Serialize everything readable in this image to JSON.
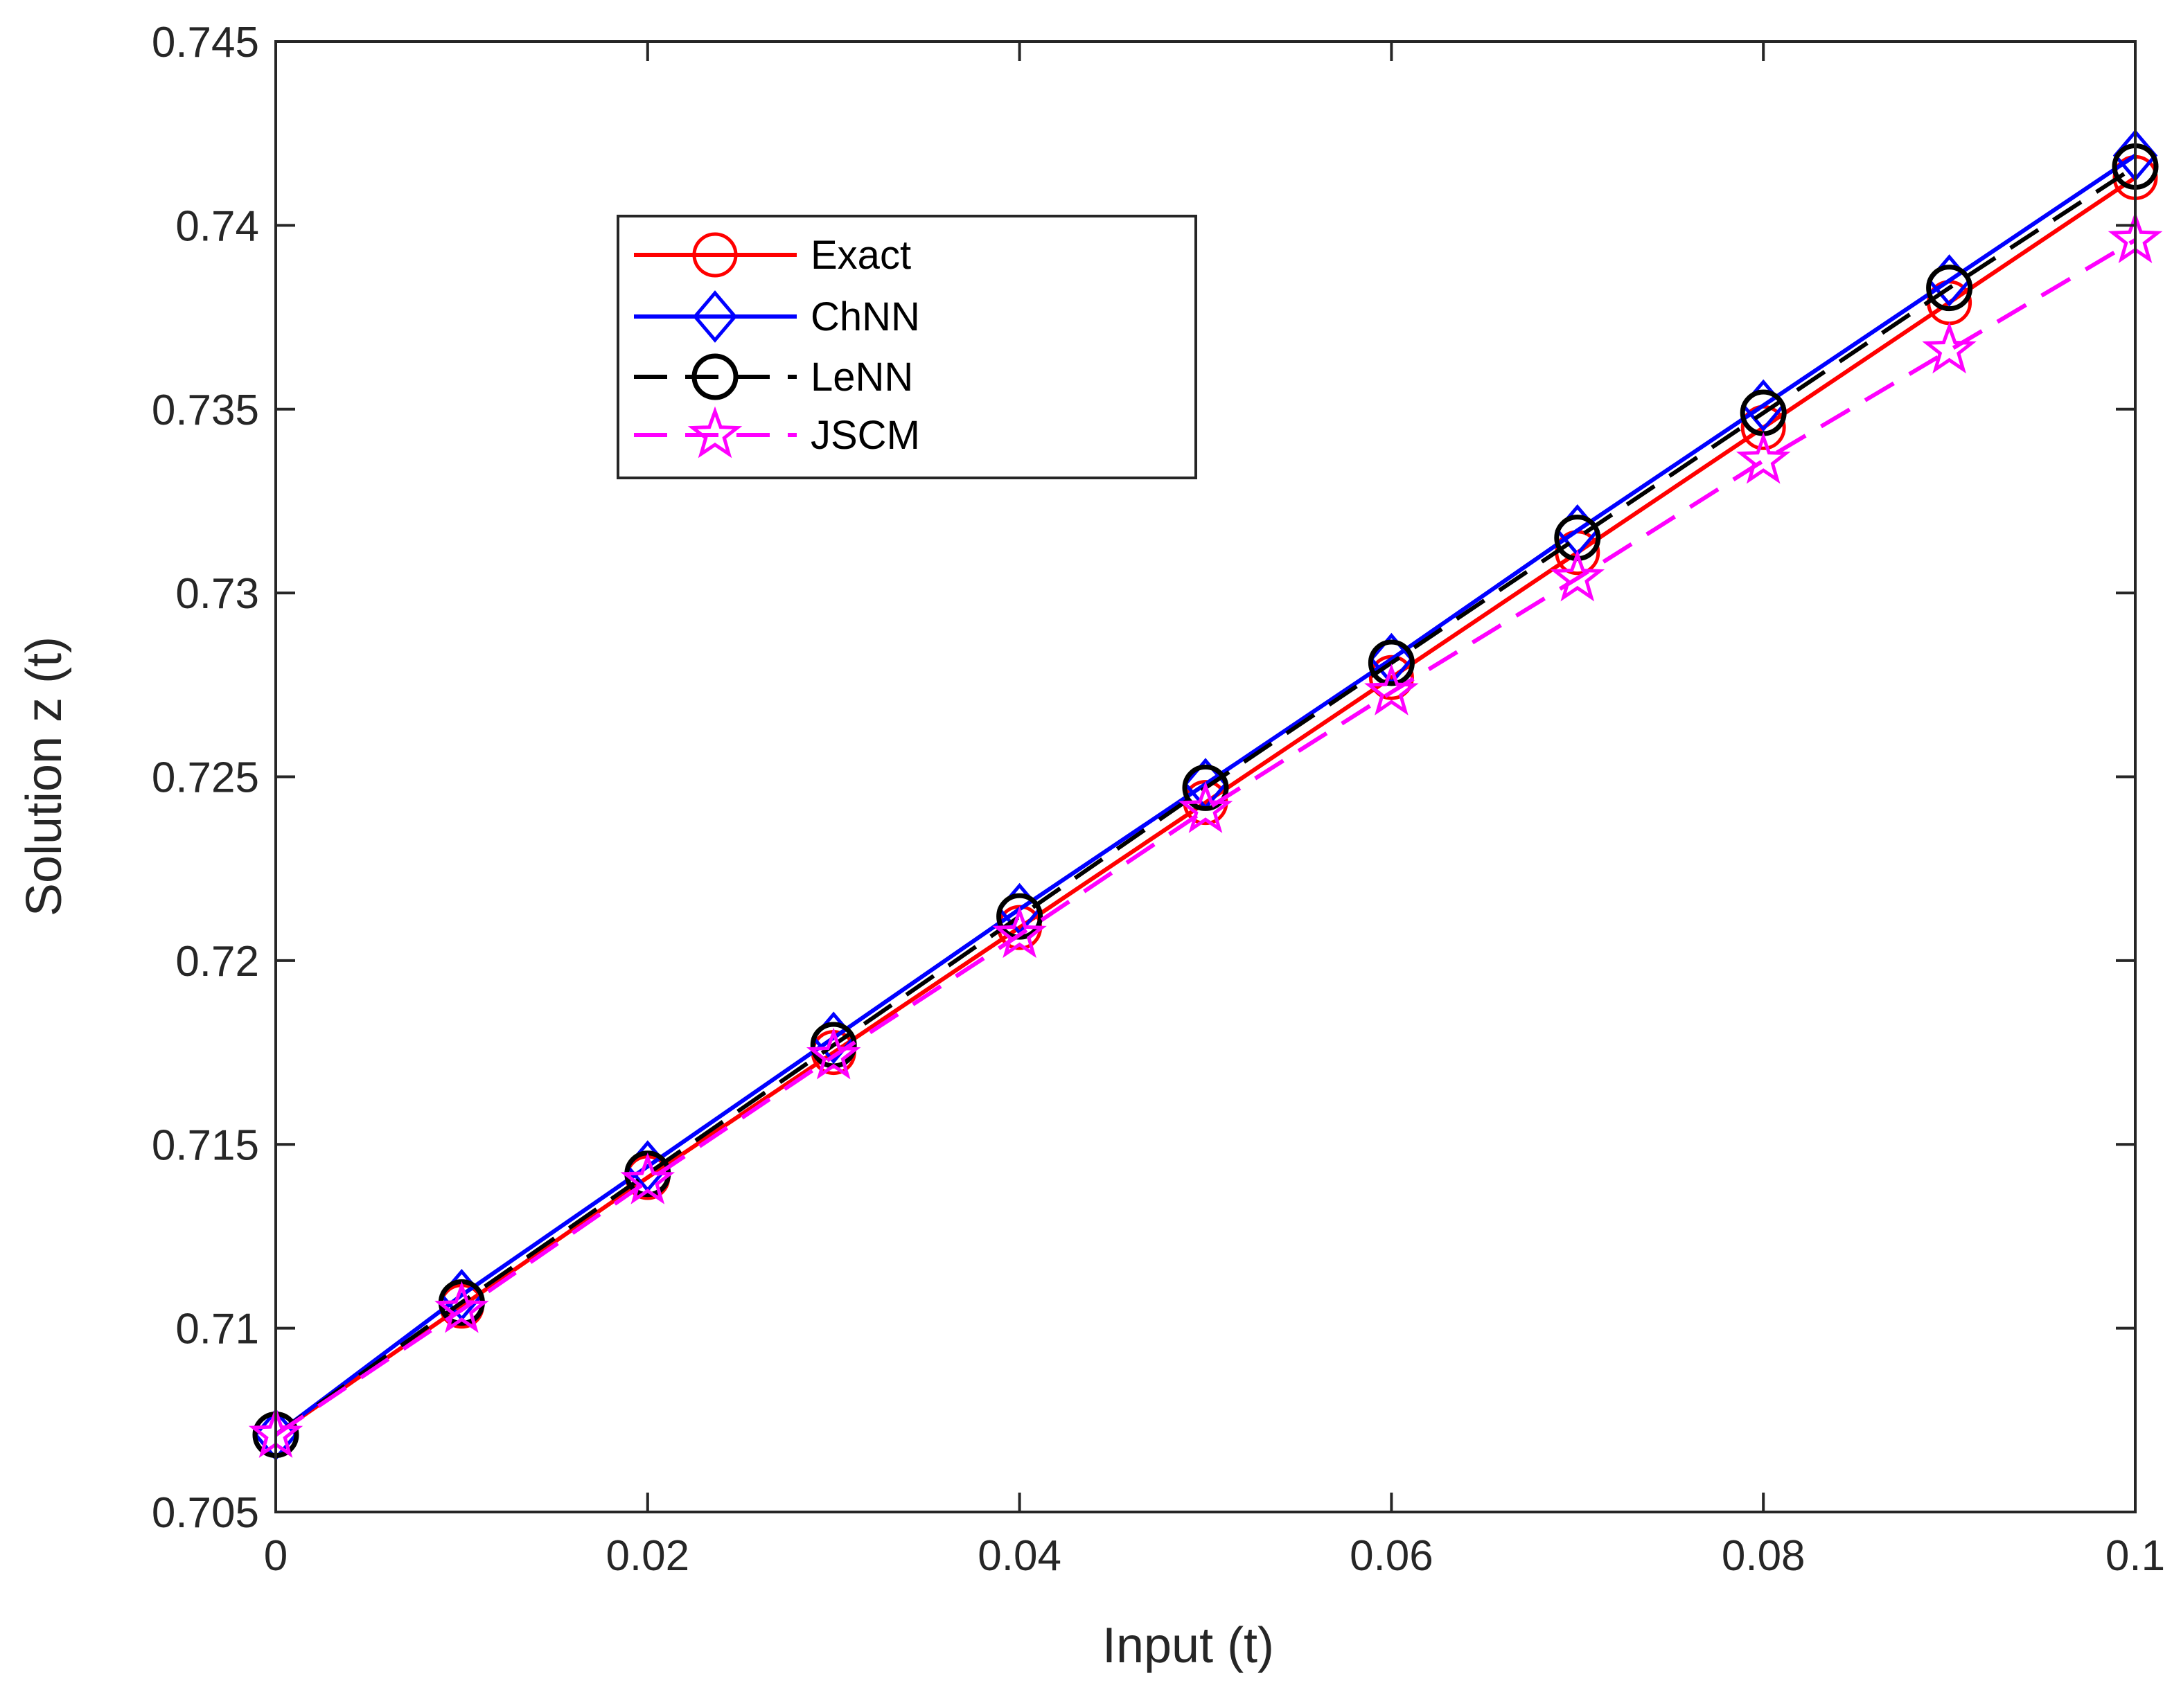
{
  "chart_data": {
    "type": "line",
    "xlabel": "Input (t)",
    "ylabel": "Solution z (t)",
    "xlim": [
      0,
      0.1
    ],
    "ylim": [
      0.705,
      0.745
    ],
    "xticks": [
      0,
      0.02,
      0.04,
      0.06,
      0.08,
      0.1
    ],
    "xtick_labels": [
      "0",
      "0.02",
      "0.04",
      "0.06",
      "0.08",
      "0.1"
    ],
    "yticks": [
      0.705,
      0.71,
      0.715,
      0.72,
      0.725,
      0.73,
      0.735,
      0.74,
      0.745
    ],
    "ytick_labels": [
      "0.705",
      "0.71",
      "0.715",
      "0.72",
      "0.725",
      "0.73",
      "0.735",
      "0.74",
      "0.745"
    ],
    "grid": false,
    "legend_position": "upper-left-center",
    "x": [
      0,
      0.01,
      0.02,
      0.03,
      0.04,
      0.05,
      0.06,
      0.07,
      0.08,
      0.09,
      0.1
    ],
    "series": [
      {
        "name": "Exact",
        "color": "#ff0000",
        "marker": "circle",
        "line_style": "solid",
        "values": [
          0.7071,
          0.7106,
          0.7141,
          0.7175,
          0.7209,
          0.7243,
          0.7277,
          0.7311,
          0.7345,
          0.7379,
          0.7413
        ]
      },
      {
        "name": "ChNN",
        "color": "#0000ff",
        "marker": "diamond",
        "line_style": "solid",
        "values": [
          0.7071,
          0.7109,
          0.7144,
          0.7179,
          0.7214,
          0.7248,
          0.7282,
          0.7317,
          0.7351,
          0.7385,
          0.7419
        ]
      },
      {
        "name": "LeNN",
        "color": "#000000",
        "marker": "circle-bar",
        "line_style": "dashed",
        "values": [
          0.7071,
          0.7107,
          0.7142,
          0.7177,
          0.7212,
          0.7247,
          0.7281,
          0.7315,
          0.7349,
          0.7383,
          0.7416
        ]
      },
      {
        "name": "JSCM",
        "color": "#ff00ff",
        "marker": "star",
        "line_style": "dashed",
        "values": [
          0.7071,
          0.7105,
          0.714,
          0.7174,
          0.7207,
          0.7241,
          0.7273,
          0.7304,
          0.7336,
          0.7366,
          0.7396
        ]
      }
    ]
  }
}
